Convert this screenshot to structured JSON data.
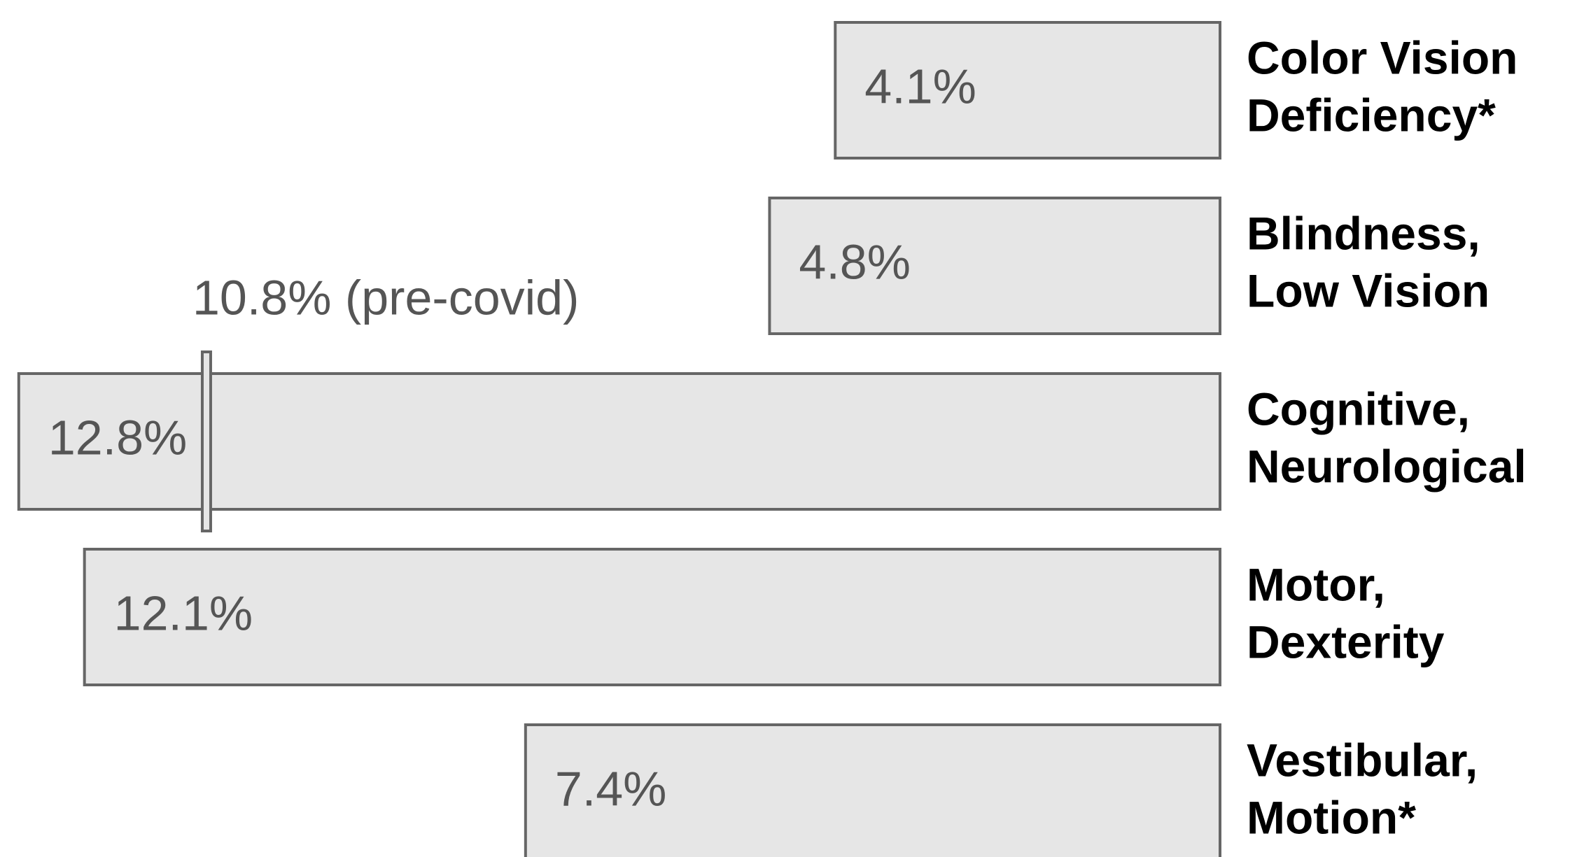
{
  "chart_data": {
    "type": "bar",
    "orientation": "horizontal",
    "x_reversed": true,
    "categories": [
      [
        "Color Vision",
        "Deficiency*"
      ],
      [
        "Blindness,",
        "Low Vision"
      ],
      [
        "Cognitive,",
        "Neurological"
      ],
      [
        "Motor,",
        "Dexterity"
      ],
      [
        "Vestibular,",
        "Motion*"
      ]
    ],
    "values": [
      4.1,
      4.8,
      12.8,
      12.1,
      7.4
    ],
    "value_labels": [
      "4.1%",
      "4.8%",
      "12.8%",
      "12.1%",
      "7.4%"
    ],
    "color": "#e6e6e6",
    "edge_color": "#666666",
    "xlim": [
      0,
      13
    ],
    "annotations": [
      {
        "text": "10.8% (pre-covid)",
        "value": 10.8
      }
    ]
  }
}
